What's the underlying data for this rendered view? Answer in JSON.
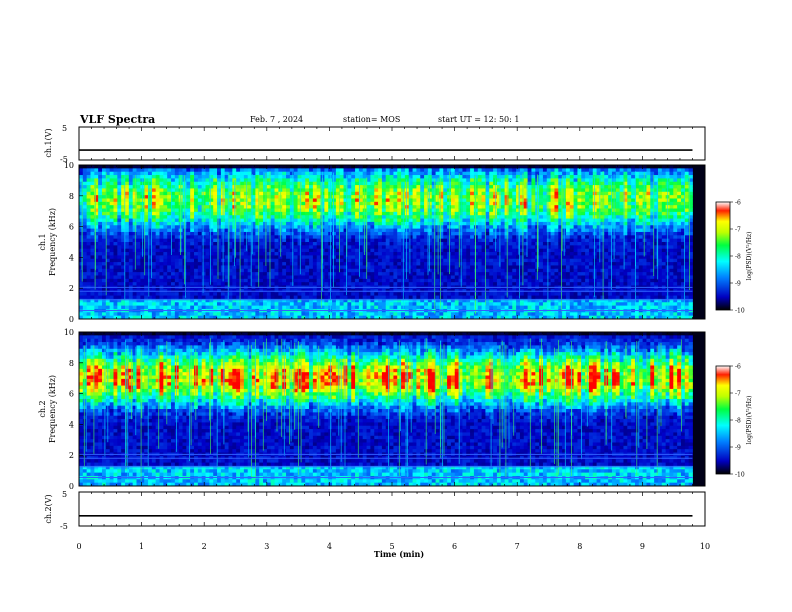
{
  "header": {
    "title": "VLF Spectra",
    "date": "Feb. 7 , 2024",
    "station": "station= MOS",
    "start_time": "start  UT =   12: 50: 1"
  },
  "chart_data": [
    {
      "type": "line",
      "panel": "ch.1(V)",
      "ylabel": "ch.1(V)",
      "ylim": [
        -5,
        5
      ],
      "yticks": [
        "5",
        "-5"
      ],
      "xlim": [
        0,
        10
      ],
      "series": [
        {
          "x": [
            0,
            9.8
          ],
          "y": [
            -2.0,
            -2.0
          ]
        }
      ]
    },
    {
      "type": "heatmap",
      "panel": "ch.1 spectrogram",
      "ylabel": "ch.1 Frequency (kHz)",
      "ylim": [
        0,
        10
      ],
      "yticks": [
        "0",
        "2",
        "4",
        "6",
        "8",
        "10"
      ],
      "xlim": [
        0,
        9.8
      ],
      "dominant_band_khz": [
        6,
        9.5
      ],
      "colorbar": {
        "label": "log(PSD)(V²/Hz)",
        "range": [
          -10,
          -6
        ],
        "ticks": [
          "-6",
          "-7",
          "-8",
          "-9",
          "-10"
        ]
      }
    },
    {
      "type": "heatmap",
      "panel": "ch.2 spectrogram",
      "ylabel": "ch.2 Frequency (kHz)",
      "ylim": [
        0,
        10
      ],
      "yticks": [
        "0",
        "2",
        "4",
        "6",
        "8",
        "10"
      ],
      "xlim": [
        0,
        9.8
      ],
      "dominant_band_khz": [
        5.5,
        8.5
      ],
      "colorbar": {
        "label": "log(PSD)(V²/Hz)",
        "range": [
          -10,
          -6
        ],
        "ticks": [
          "-6",
          "-7",
          "-8",
          "-9",
          "-10"
        ]
      }
    },
    {
      "type": "line",
      "panel": "ch.2(V)",
      "ylabel": "ch.2(V)",
      "ylim": [
        -5,
        5
      ],
      "yticks": [
        "5",
        "-5"
      ],
      "xlim": [
        0,
        10
      ],
      "series": [
        {
          "x": [
            0,
            9.8
          ],
          "y": [
            -2.0,
            -2.0
          ]
        }
      ]
    }
  ],
  "xaxis": {
    "label": "Time  (min)",
    "ticks": [
      "0",
      "1",
      "2",
      "3",
      "4",
      "5",
      "6",
      "7",
      "8",
      "9",
      "10"
    ],
    "range": [
      0,
      10
    ]
  },
  "colors": {
    "background": "#000020",
    "colormap": [
      "#000000",
      "#0000ff",
      "#00ffff",
      "#00ff00",
      "#ffff00",
      "#ff0000",
      "#ffffff"
    ]
  }
}
